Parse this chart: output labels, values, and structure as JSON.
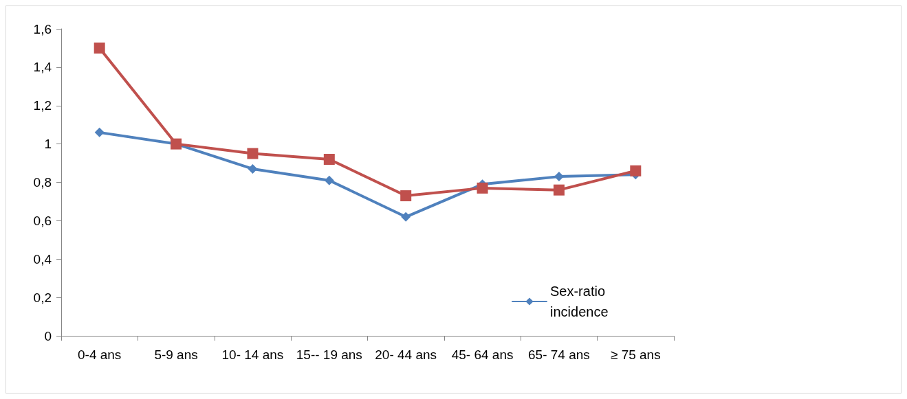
{
  "chart_data": {
    "type": "line",
    "categories": [
      "0-4 ans",
      "5-9 ans",
      "10- 14 ans",
      "15-- 19 ans",
      "20- 44 ans",
      "45- 64 ans",
      "65- 74 ans",
      "≥ 75 ans"
    ],
    "series": [
      {
        "name": "Sex-ratio incidence",
        "color": "#4f81bd",
        "marker": "diamond",
        "values": [
          1.06,
          1.0,
          0.87,
          0.81,
          0.62,
          0.79,
          0.83,
          0.84
        ]
      },
      {
        "color": "#c0504d",
        "marker": "square",
        "values": [
          1.5,
          1.0,
          0.95,
          0.92,
          0.73,
          0.77,
          0.76,
          0.86
        ]
      }
    ],
    "ylim": [
      0,
      1.6
    ],
    "yticks": [
      0,
      {
        "value": 0.2,
        "label": "0,2"
      },
      {
        "value": 0.4,
        "label": "0,4"
      },
      {
        "value": 0.6,
        "label": "0,6"
      },
      {
        "value": 0.8,
        "label": "0,8"
      },
      1,
      {
        "value": 1.2,
        "label": "1,2"
      },
      {
        "value": 1.4,
        "label": "1,4"
      },
      {
        "value": 1.6,
        "label": "1,6"
      }
    ],
    "grid": false,
    "legend": "bottom right",
    "line_style": "solid"
  }
}
